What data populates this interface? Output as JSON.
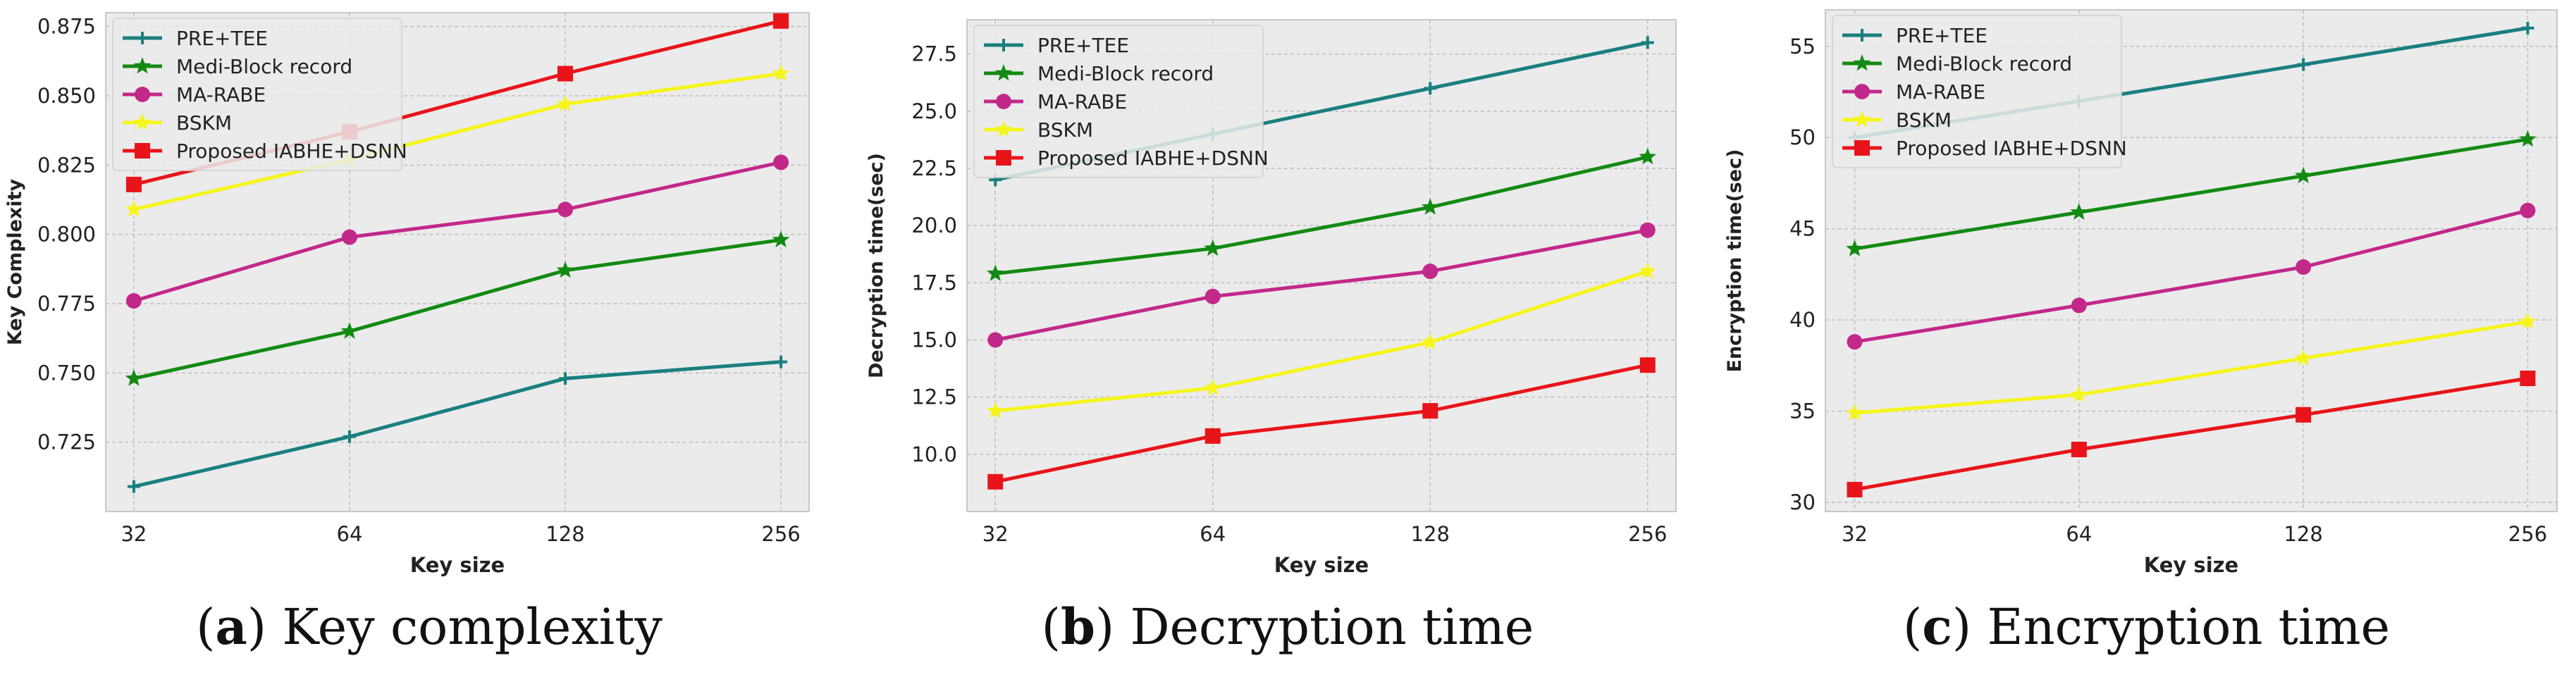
{
  "figure": {
    "panels": [
      {
        "caption_letter": "a",
        "caption_text": "Key complexity",
        "chart_data": {
          "type": "line",
          "xlabel": "Key size",
          "ylabel": "Key Complexity",
          "categories": [
            "32",
            "64",
            "128",
            "256"
          ],
          "ylim": [
            0.7,
            0.88
          ],
          "yticks": [
            0.725,
            0.75,
            0.775,
            0.8,
            0.825,
            0.85,
            0.875
          ],
          "ytick_decimals": 3,
          "grid": true,
          "legend_position": "top-left",
          "series": [
            {
              "name": "PRE+TEE",
              "color": "#1a7f7f",
              "marker": "plus",
              "values": [
                0.709,
                0.727,
                0.748,
                0.754
              ]
            },
            {
              "name": "Medi-Block record",
              "color": "#138a13",
              "marker": "star",
              "values": [
                0.748,
                0.765,
                0.787,
                0.798
              ]
            },
            {
              "name": "MA-RABE",
              "color": "#c2288a",
              "marker": "circle",
              "values": [
                0.776,
                0.799,
                0.809,
                0.826
              ]
            },
            {
              "name": "BSKM",
              "color": "#f5f51a",
              "marker": "star",
              "values": [
                0.809,
                0.827,
                0.847,
                0.858
              ]
            },
            {
              "name": "Proposed IABHE+DSNN",
              "color": "#e8141a",
              "marker": "square",
              "values": [
                0.818,
                0.837,
                0.858,
                0.877
              ]
            }
          ]
        }
      },
      {
        "caption_letter": "b",
        "caption_text": "Decryption time",
        "chart_data": {
          "type": "line",
          "xlabel": "Key size",
          "ylabel": "Decryption time(sec)",
          "categories": [
            "32",
            "64",
            "128",
            "256"
          ],
          "ylim": [
            7.5,
            29
          ],
          "yticks": [
            10.0,
            12.5,
            15.0,
            17.5,
            20.0,
            22.5,
            25.0,
            27.5
          ],
          "ytick_decimals": 1,
          "grid": true,
          "legend_position": "top-left",
          "series": [
            {
              "name": "PRE+TEE",
              "color": "#1a7f7f",
              "marker": "plus",
              "values": [
                22.0,
                24.0,
                26.0,
                28.0
              ]
            },
            {
              "name": "Medi-Block record",
              "color": "#138a13",
              "marker": "star",
              "values": [
                17.9,
                19.0,
                20.8,
                23.0
              ]
            },
            {
              "name": "MA-RABE",
              "color": "#c2288a",
              "marker": "circle",
              "values": [
                15.0,
                16.9,
                18.0,
                19.8
              ]
            },
            {
              "name": "BSKM",
              "color": "#f5f51a",
              "marker": "star",
              "values": [
                11.9,
                12.9,
                14.9,
                18.0
              ]
            },
            {
              "name": "Proposed IABHE+DSNN",
              "color": "#e8141a",
              "marker": "square",
              "values": [
                8.8,
                10.8,
                11.9,
                13.9
              ]
            }
          ]
        }
      },
      {
        "caption_letter": "c",
        "caption_text": "Encryption time",
        "chart_data": {
          "type": "line",
          "xlabel": "Key size",
          "ylabel": "Encryption time(sec)",
          "categories": [
            "32",
            "64",
            "128",
            "256"
          ],
          "ylim": [
            29.5,
            57
          ],
          "yticks": [
            30,
            35,
            40,
            45,
            50,
            55
          ],
          "ytick_decimals": 0,
          "grid": true,
          "legend_position": "top-left",
          "series": [
            {
              "name": "PRE+TEE",
              "color": "#1a7f7f",
              "marker": "plus",
              "values": [
                50.0,
                52.0,
                54.0,
                56.0
              ]
            },
            {
              "name": "Medi-Block record",
              "color": "#138a13",
              "marker": "star",
              "values": [
                43.9,
                45.9,
                47.9,
                49.9
              ]
            },
            {
              "name": "MA-RABE",
              "color": "#c2288a",
              "marker": "circle",
              "values": [
                38.8,
                40.8,
                42.9,
                46.0
              ]
            },
            {
              "name": "BSKM",
              "color": "#f5f51a",
              "marker": "star",
              "values": [
                34.9,
                35.9,
                37.9,
                39.9
              ]
            },
            {
              "name": "Proposed IABHE+DSNN",
              "color": "#e8141a",
              "marker": "square",
              "values": [
                30.7,
                32.9,
                34.8,
                36.8
              ]
            }
          ]
        }
      }
    ]
  }
}
